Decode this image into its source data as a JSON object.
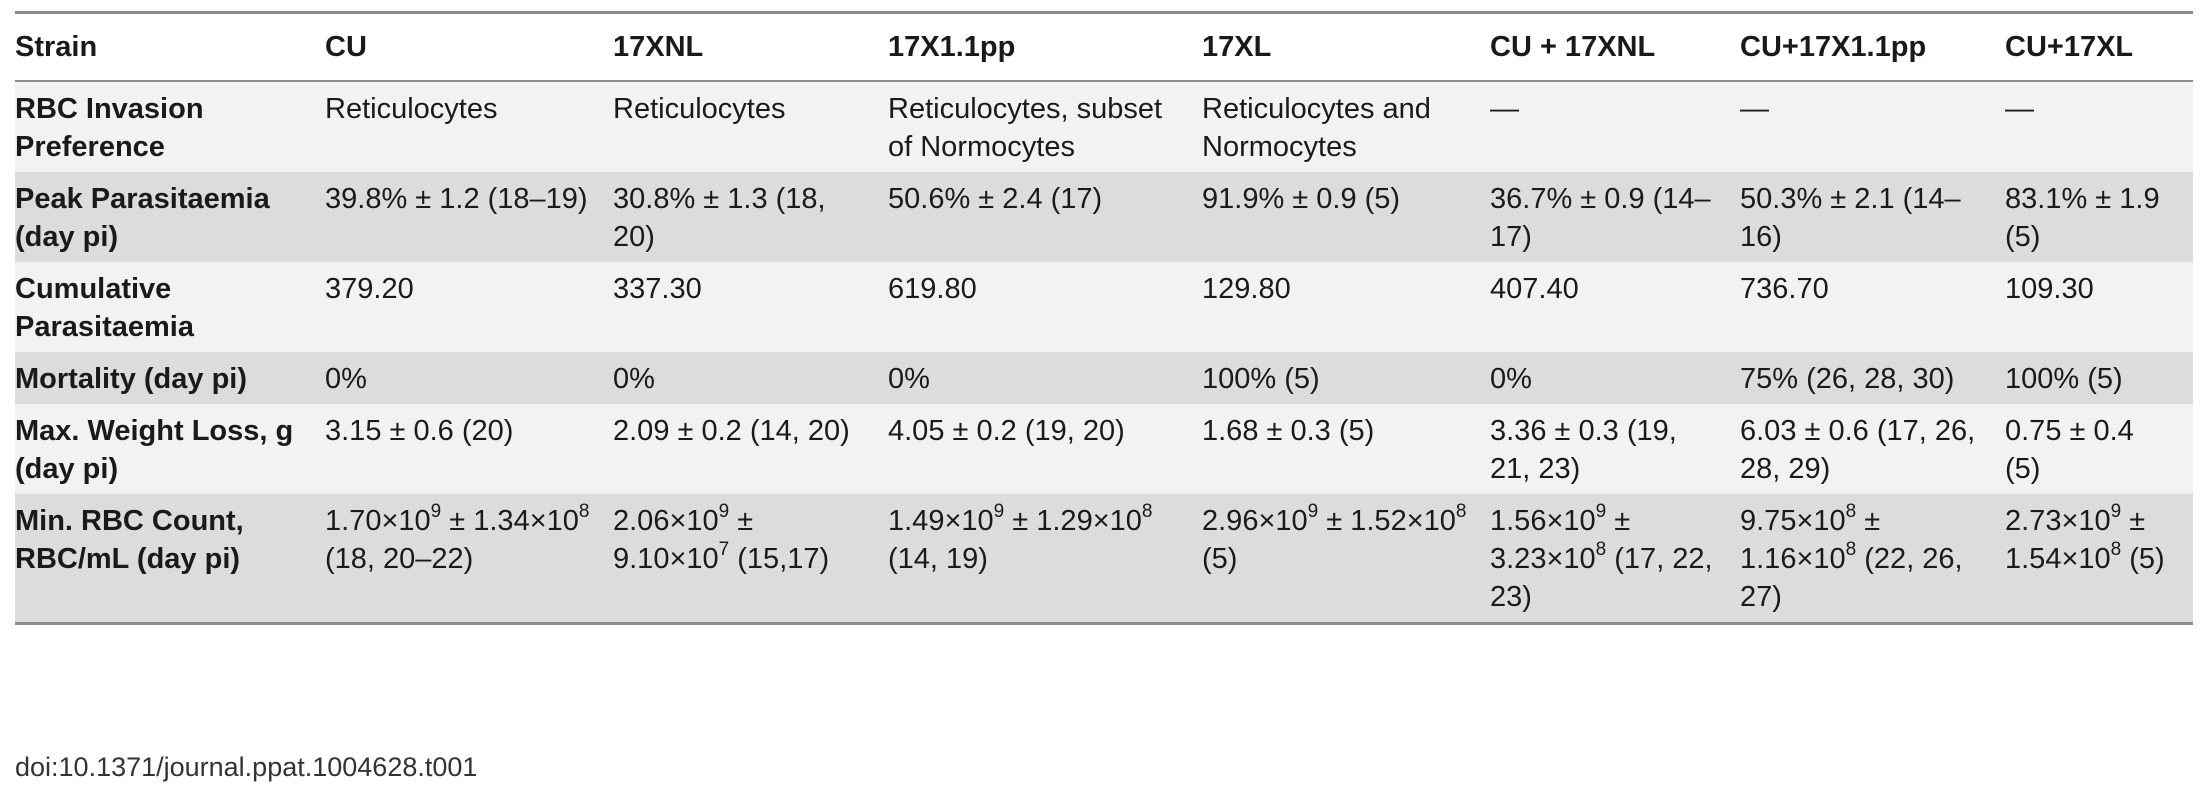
{
  "table": {
    "columns": [
      "Strain",
      "CU",
      "17XNL",
      "17X1.1pp",
      "17XL",
      "CU + 17XNL",
      "CU+17X1.1pp",
      "CU+17XL"
    ],
    "rows": [
      {
        "label": "RBC Invasion Preference",
        "cells": [
          "Reticulocytes",
          "Reticulocytes",
          "Reticulocytes, subset of Normocytes",
          "Reticulocytes and Normocytes",
          "—",
          "—",
          "—"
        ]
      },
      {
        "label": "Peak Parasitaemia (day pi)",
        "cells": [
          "39.8% ± 1.2 (18–19)",
          "30.8% ± 1.3 (18, 20)",
          "50.6% ± 2.4 (17)",
          "91.9% ± 0.9 (5)",
          "36.7% ± 0.9 (14–17)",
          "50.3% ± 2.1 (14–16)",
          "83.1% ± 1.9 (5)"
        ]
      },
      {
        "label": "Cumulative Parasitaemia",
        "cells": [
          "379.20",
          "337.30",
          "619.80",
          "129.80",
          "407.40",
          "736.70",
          "109.30"
        ]
      },
      {
        "label": "Mortality (day pi)",
        "cells": [
          "0%",
          "0%",
          "0%",
          "100% (5)",
          "0%",
          "75% (26, 28, 30)",
          "100% (5)"
        ]
      },
      {
        "label": "Max. Weight Loss, g (day pi)",
        "cells": [
          "3.15 ± 0.6 (20)",
          "2.09 ± 0.2 (14, 20)",
          "4.05 ± 0.2 (19, 20)",
          "1.68 ± 0.3 (5)",
          "3.36 ± 0.3 (19, 21, 23)",
          "6.03 ± 0.6 (17, 26, 28, 29)",
          "0.75 ± 0.4 (5)"
        ]
      },
      {
        "label": "Min. RBC Count, RBC/mL (day pi)",
        "cells": [
          {
            "a": "1.70×10",
            "ae": "9",
            "b": " ± 1.34×10",
            "be": "8",
            "c": " (18, 20–22)"
          },
          {
            "a": "2.06×10",
            "ae": "9",
            "b": " ± 9.10×10",
            "be": "7",
            "c": " (15,17)"
          },
          {
            "a": "1.49×10",
            "ae": "9",
            "b": " ± 1.29×10",
            "be": "8",
            "c": " (14, 19)"
          },
          {
            "a": "2.96×10",
            "ae": "9",
            "b": " ± 1.52×10",
            "be": "8",
            "c": " (5)"
          },
          {
            "a": "1.56×10",
            "ae": "9",
            "b": " ± 3.23×10",
            "be": "8",
            "c": " (17, 22, 23)"
          },
          {
            "a": "9.75×10",
            "ae": "8",
            "b": " ± 1.16×10",
            "be": "8",
            "c": " (22, 26, 27)"
          },
          {
            "a": "2.73×10",
            "ae": "9",
            "b": " ± 1.54×10",
            "be": "8",
            "c": " (5)"
          }
        ]
      }
    ]
  },
  "doi": "doi:10.1371/journal.ppat.1004628.t001"
}
